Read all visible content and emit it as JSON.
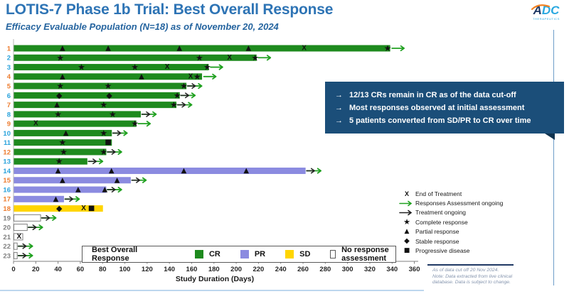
{
  "header": {
    "title": "LOTIS-7 Phase 1b Trial: Best Overall Response",
    "subtitle": "Efficacy Evaluable Population (N=18) as of November 20, 2024",
    "logo": {
      "text_a": "A",
      "text_dc": "DC",
      "subtext": "THERAPEUTICS"
    }
  },
  "callout": {
    "bullets": [
      "12/13 CRs remain in CR as of the data cut-off",
      "Most responses observed at initial assessment",
      "5 patients converted from SD/PR to CR over time"
    ]
  },
  "chart_data": {
    "type": "bar",
    "variant": "swimmer-plot",
    "xlabel": "Study Duration (Days)",
    "xlim": [
      0,
      360
    ],
    "xtick_step": 20,
    "legend_position": "bottom",
    "patients": [
      {
        "id": "1",
        "id_color": "orange",
        "best_response": "CR",
        "duration_days": 338,
        "ongoing": [
          "assessment"
        ],
        "markers": [
          {
            "type": "partial",
            "day": 44
          },
          {
            "type": "partial",
            "day": 85
          },
          {
            "type": "partial",
            "day": 149
          },
          {
            "type": "partial",
            "day": 211
          },
          {
            "type": "eot",
            "day": 261
          },
          {
            "type": "complete",
            "day": 336
          }
        ]
      },
      {
        "id": "2",
        "id_color": "blue",
        "best_response": "CR",
        "duration_days": 218,
        "ongoing": [
          "assessment"
        ],
        "markers": [
          {
            "type": "complete",
            "day": 42
          },
          {
            "type": "complete",
            "day": 167
          },
          {
            "type": "eot",
            "day": 194
          },
          {
            "type": "complete",
            "day": 217
          }
        ]
      },
      {
        "id": "3",
        "id_color": "blue",
        "best_response": "CR",
        "duration_days": 175,
        "ongoing": [
          "assessment"
        ],
        "markers": [
          {
            "type": "complete",
            "day": 61
          },
          {
            "type": "complete",
            "day": 109
          },
          {
            "type": "eot",
            "day": 138
          },
          {
            "type": "complete",
            "day": 174
          }
        ]
      },
      {
        "id": "4",
        "id_color": "orange",
        "best_response": "CR",
        "duration_days": 169,
        "ongoing": [
          "assessment"
        ],
        "markers": [
          {
            "type": "partial",
            "day": 44
          },
          {
            "type": "partial",
            "day": 115
          },
          {
            "type": "eot",
            "day": 159
          },
          {
            "type": "complete",
            "day": 165
          }
        ]
      },
      {
        "id": "5",
        "id_color": "orange",
        "best_response": "CR",
        "duration_days": 155,
        "ongoing": [
          "treatment",
          "assessment"
        ],
        "markers": [
          {
            "type": "complete",
            "day": 42
          },
          {
            "type": "complete",
            "day": 85
          },
          {
            "type": "complete",
            "day": 153
          }
        ]
      },
      {
        "id": "6",
        "id_color": "blue",
        "best_response": "CR",
        "duration_days": 149,
        "ongoing": [
          "treatment",
          "assessment"
        ],
        "markers": [
          {
            "type": "stable",
            "day": 41
          },
          {
            "type": "stable",
            "day": 86
          },
          {
            "type": "complete",
            "day": 147
          }
        ]
      },
      {
        "id": "7",
        "id_color": "orange",
        "best_response": "CR",
        "duration_days": 146,
        "ongoing": [
          "treatment",
          "assessment"
        ],
        "markers": [
          {
            "type": "partial",
            "day": 39
          },
          {
            "type": "complete",
            "day": 81
          },
          {
            "type": "complete",
            "day": 144
          }
        ]
      },
      {
        "id": "8",
        "id_color": "blue",
        "best_response": "CR",
        "duration_days": 114,
        "ongoing": [
          "treatment",
          "assessment"
        ],
        "markers": [
          {
            "type": "complete",
            "day": 40
          },
          {
            "type": "complete",
            "day": 89
          }
        ]
      },
      {
        "id": "9",
        "id_color": "orange",
        "best_response": "CR",
        "duration_days": 110,
        "ongoing": [
          "assessment"
        ],
        "markers": [
          {
            "type": "eot",
            "day": 20
          },
          {
            "type": "complete",
            "day": 109
          }
        ]
      },
      {
        "id": "10",
        "id_color": "blue",
        "best_response": "CR",
        "duration_days": 88,
        "ongoing": [
          "treatment",
          "assessment"
        ],
        "markers": [
          {
            "type": "partial",
            "day": 47
          },
          {
            "type": "complete",
            "day": 81
          }
        ]
      },
      {
        "id": "11",
        "id_color": "blue",
        "best_response": "CR",
        "duration_days": 88,
        "ongoing": [],
        "markers": [
          {
            "type": "complete",
            "day": 44
          },
          {
            "type": "progressive",
            "day": 85
          }
        ]
      },
      {
        "id": "12",
        "id_color": "orange",
        "best_response": "CR",
        "duration_days": 83,
        "ongoing": [
          "treatment",
          "assessment"
        ],
        "markers": [
          {
            "type": "complete",
            "day": 45
          },
          {
            "type": "complete",
            "day": 81
          }
        ]
      },
      {
        "id": "13",
        "id_color": "blue",
        "best_response": "CR",
        "duration_days": 66,
        "ongoing": [
          "treatment",
          "assessment"
        ],
        "markers": [
          {
            "type": "complete",
            "day": 41
          }
        ]
      },
      {
        "id": "14",
        "id_color": "blue",
        "best_response": "PR",
        "duration_days": 262,
        "ongoing": [
          "treatment",
          "assessment"
        ],
        "markers": [
          {
            "type": "partial",
            "day": 40
          },
          {
            "type": "partial",
            "day": 88
          },
          {
            "type": "partial",
            "day": 153
          },
          {
            "type": "partial",
            "day": 209
          }
        ]
      },
      {
        "id": "15",
        "id_color": "orange",
        "best_response": "PR",
        "duration_days": 105,
        "ongoing": [
          "treatment",
          "assessment"
        ],
        "markers": [
          {
            "type": "partial",
            "day": 44
          },
          {
            "type": "partial",
            "day": 93
          }
        ]
      },
      {
        "id": "16",
        "id_color": "blue",
        "best_response": "PR",
        "duration_days": 83,
        "ongoing": [
          "treatment",
          "assessment"
        ],
        "markers": [
          {
            "type": "partial",
            "day": 58
          },
          {
            "type": "partial",
            "day": 82
          }
        ]
      },
      {
        "id": "17",
        "id_color": "orange",
        "best_response": "PR",
        "duration_days": 45,
        "ongoing": [
          "treatment",
          "assessment"
        ],
        "markers": [
          {
            "type": "partial",
            "day": 38
          }
        ]
      },
      {
        "id": "18",
        "id_color": "orange",
        "best_response": "SD",
        "duration_days": 80,
        "ongoing": [],
        "markers": [
          {
            "type": "stable",
            "day": 41
          },
          {
            "type": "eot",
            "day": 63
          },
          {
            "type": "progressive",
            "day": 70
          }
        ]
      },
      {
        "id": "19",
        "id_color": "gray",
        "best_response": "NA",
        "duration_days": 24,
        "ongoing": [
          "treatment",
          "assessment"
        ],
        "markers": []
      },
      {
        "id": "20",
        "id_color": "gray",
        "best_response": "NA",
        "duration_days": 12,
        "ongoing": [
          "treatment",
          "assessment"
        ],
        "markers": []
      },
      {
        "id": "21",
        "id_color": "gray",
        "best_response": "NA",
        "duration_days": 8,
        "ongoing": [],
        "markers": [
          {
            "type": "eot",
            "day": 5
          }
        ]
      },
      {
        "id": "22",
        "id_color": "gray",
        "best_response": "NA",
        "duration_days": 3,
        "ongoing": [
          "treatment",
          "assessment"
        ],
        "markers": []
      },
      {
        "id": "23",
        "id_color": "gray",
        "best_response": "NA",
        "duration_days": 3,
        "ongoing": [
          "treatment",
          "assessment"
        ],
        "markers": []
      }
    ]
  },
  "marker_legend": {
    "items": [
      {
        "symbol": "eot",
        "label": "End of Treatment"
      },
      {
        "symbol": "arrow-assessment",
        "label": "Responses Assessment ongoing"
      },
      {
        "symbol": "arrow-treatment",
        "label": "Treatment ongoing"
      },
      {
        "symbol": "complete",
        "label": "Complete response"
      },
      {
        "symbol": "partial",
        "label": "Partial response"
      },
      {
        "symbol": "stable",
        "label": "Stable response"
      },
      {
        "symbol": "progressive",
        "label": "Progressive disease"
      }
    ]
  },
  "bor_legend": {
    "title": "Best Overall Response",
    "items": [
      {
        "label": "CR",
        "color": "#1E8A1E"
      },
      {
        "label": "PR",
        "color": "#8B8BE0"
      },
      {
        "label": "SD",
        "color": "#FFD500"
      },
      {
        "label": "No response assessment",
        "color": "#FFFFFF"
      }
    ]
  },
  "footnote": {
    "lines": [
      "As of data cut off 20 Nov 2024.",
      "Note:  Data extracted from live clinical",
      "database.  Data is subject to change."
    ]
  },
  "colors": {
    "title": "#2E74B5",
    "callout_bg": "#1B4E79",
    "callout_text": "#FFFFFF",
    "cr": "#1E8A1E",
    "pr": "#8B8BE0",
    "sd": "#FFD500",
    "na_fill": "#FFFFFF",
    "na_border": "#808080",
    "arrow_green": "#21A121",
    "arrow_black": "#222222",
    "marker": "#111111",
    "id_orange": "#ED7D31",
    "id_blue": "#2BA3DC",
    "id_gray": "#7F7F7F",
    "axis": "#7F7F7F",
    "tick_text": "#262626"
  }
}
